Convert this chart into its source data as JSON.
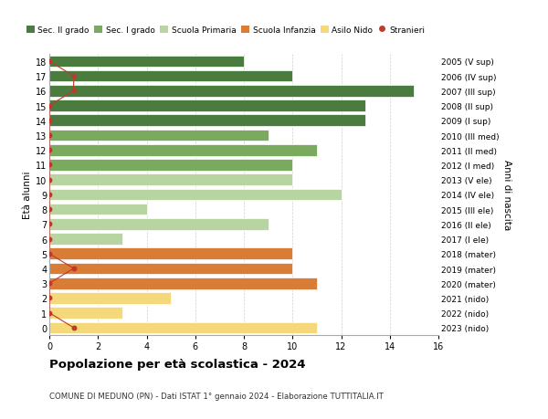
{
  "ages": [
    18,
    17,
    16,
    15,
    14,
    13,
    12,
    11,
    10,
    9,
    8,
    7,
    6,
    5,
    4,
    3,
    2,
    1,
    0
  ],
  "birth_years": [
    "2005 (V sup)",
    "2006 (IV sup)",
    "2007 (III sup)",
    "2008 (II sup)",
    "2009 (I sup)",
    "2010 (III med)",
    "2011 (II med)",
    "2012 (I med)",
    "2013 (V ele)",
    "2014 (IV ele)",
    "2015 (III ele)",
    "2016 (II ele)",
    "2017 (I ele)",
    "2018 (mater)",
    "2019 (mater)",
    "2020 (mater)",
    "2021 (nido)",
    "2022 (nido)",
    "2023 (nido)"
  ],
  "bar_values": [
    8,
    10,
    15,
    13,
    13,
    9,
    11,
    10,
    10,
    12,
    4,
    9,
    3,
    10,
    10,
    11,
    5,
    3,
    11
  ],
  "stranieri_values": [
    0,
    1,
    1,
    0,
    0,
    0,
    0,
    0,
    0,
    0,
    0,
    0,
    0,
    0,
    1,
    0,
    0,
    0,
    1
  ],
  "bar_colors": [
    "#4a7c40",
    "#4a7c40",
    "#4a7c40",
    "#4a7c40",
    "#4a7c40",
    "#7aaa5e",
    "#7aaa5e",
    "#7aaa5e",
    "#b8d4a0",
    "#b8d4a0",
    "#b8d4a0",
    "#b8d4a0",
    "#b8d4a0",
    "#d97c35",
    "#d97c35",
    "#d97c35",
    "#f5d87a",
    "#f5d87a",
    "#f5d87a"
  ],
  "legend_labels": [
    "Sec. II grado",
    "Sec. I grado",
    "Scuola Primaria",
    "Scuola Infanzia",
    "Asilo Nido",
    "Stranieri"
  ],
  "legend_colors": [
    "#4a7c40",
    "#7aaa5e",
    "#b8d4a0",
    "#d97c35",
    "#f5d87a",
    "#c0392b"
  ],
  "stranieri_color": "#c0392b",
  "title": "Popolazione per età scolastica - 2024",
  "subtitle": "COMUNE DI MEDUNO (PN) - Dati ISTAT 1° gennaio 2024 - Elaborazione TUTTITALIA.IT",
  "ylabel_left": "Età alunni",
  "ylabel_right": "Anni di nascita",
  "xlim": [
    0,
    16
  ],
  "xticks": [
    0,
    2,
    4,
    6,
    8,
    10,
    12,
    14,
    16
  ],
  "background_color": "#ffffff",
  "grid_color": "#cccccc"
}
